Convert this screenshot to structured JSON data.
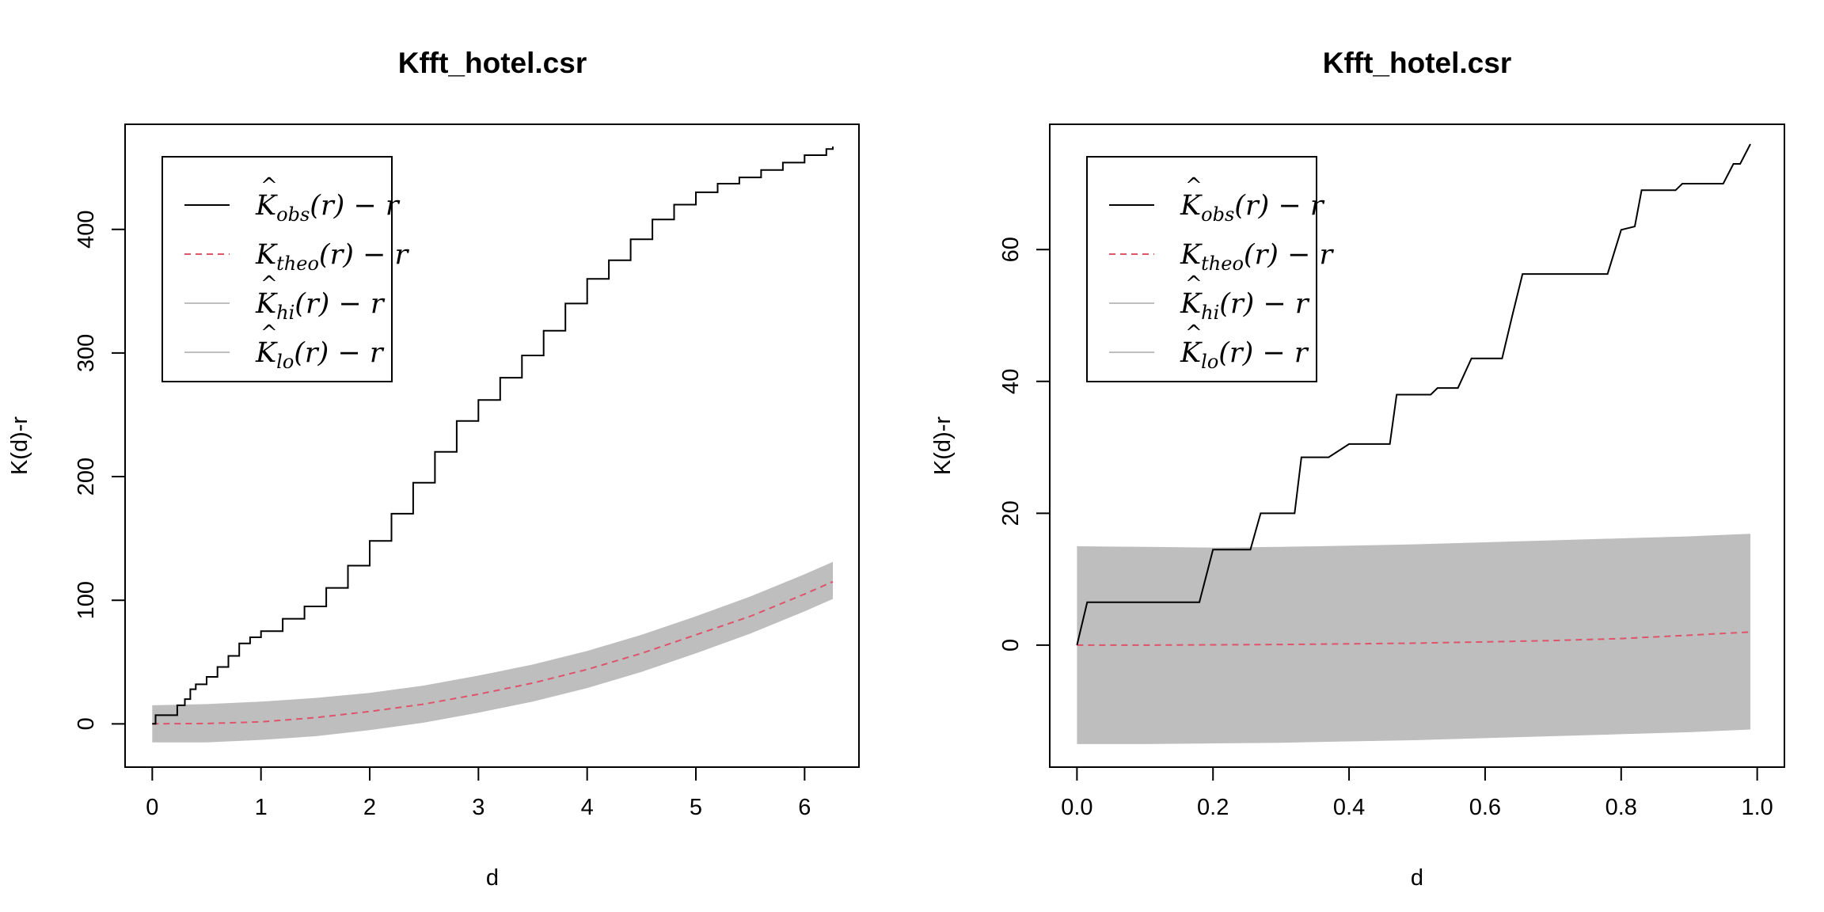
{
  "chart_data": [
    {
      "type": "line",
      "title": "Kfft_hotel.csr",
      "xlabel": "d",
      "ylabel": "K(d)-r",
      "xlim": [
        -0.25,
        6.5
      ],
      "ylim": [
        -35,
        485
      ],
      "xticks": [
        0,
        1,
        2,
        3,
        4,
        5,
        6
      ],
      "xtick_labels": [
        "0",
        "1",
        "2",
        "3",
        "4",
        "5",
        "6"
      ],
      "yticks": [
        0,
        100,
        200,
        300,
        400
      ],
      "ytick_labels": [
        "0",
        "100",
        "200",
        "300",
        "400"
      ],
      "legend_position": "top-left",
      "legend": [
        {
          "main": "K",
          "hat": "^",
          "sub": "obs",
          "rest": "(r) − r",
          "style": "solid",
          "color": "#000000"
        },
        {
          "main": "K",
          "hat": "",
          "sub": "theo",
          "rest": "(r) − r",
          "style": "dashed",
          "color": "#DF536B"
        },
        {
          "main": "K",
          "hat": "^",
          "sub": "hi",
          "rest": "(r) − r",
          "style": "solid",
          "color": "#BEBEBE"
        },
        {
          "main": "K",
          "hat": "^",
          "sub": "lo",
          "rest": "(r) − r",
          "style": "solid",
          "color": "#BEBEBE"
        }
      ],
      "series": [
        {
          "name": "obs",
          "color": "#000000",
          "style": "step",
          "x": [
            0,
            0.03,
            0.2,
            0.23,
            0.3,
            0.35,
            0.4,
            0.5,
            0.6,
            0.7,
            0.8,
            0.9,
            1.0,
            1.2,
            1.4,
            1.6,
            1.8,
            2.0,
            2.2,
            2.4,
            2.6,
            2.8,
            3.0,
            3.2,
            3.4,
            3.6,
            3.8,
            4.0,
            4.2,
            4.4,
            4.6,
            4.8,
            5.0,
            5.2,
            5.4,
            5.6,
            5.8,
            6.0,
            6.2,
            6.26
          ],
          "y": [
            0,
            7,
            7,
            15,
            20,
            28,
            32,
            38,
            46,
            55,
            65,
            70,
            75,
            85,
            95,
            110,
            128,
            148,
            170,
            195,
            220,
            245,
            262,
            280,
            298,
            318,
            340,
            360,
            375,
            392,
            408,
            420,
            430,
            437,
            442,
            448,
            454,
            460,
            465,
            467
          ]
        },
        {
          "name": "theo",
          "color": "#DF536B",
          "style": "dashed",
          "x": [
            0,
            0.5,
            1,
            1.5,
            2,
            2.5,
            3,
            3.5,
            4,
            4.5,
            5,
            5.5,
            6,
            6.26
          ],
          "y": [
            0,
            0.3,
            1.6,
            5,
            10,
            16,
            24,
            33,
            44,
            57,
            72,
            87,
            105,
            115
          ]
        },
        {
          "name": "hi",
          "color": "#BEBEBE",
          "style": "band-upper",
          "x": [
            0,
            0.5,
            1,
            1.5,
            2,
            2.5,
            3,
            3.5,
            4,
            4.5,
            5,
            5.5,
            6,
            6.26
          ],
          "y": [
            15,
            16,
            18,
            21,
            25,
            31,
            39,
            48,
            59,
            72,
            87,
            103,
            121,
            131
          ]
        },
        {
          "name": "lo",
          "color": "#BEBEBE",
          "style": "band-lower",
          "x": [
            0,
            0.5,
            1,
            1.5,
            2,
            2.5,
            3,
            3.5,
            4,
            4.5,
            5,
            5.5,
            6,
            6.26
          ],
          "y": [
            -15,
            -15,
            -13,
            -10,
            -5,
            1,
            9,
            18,
            29,
            42,
            57,
            73,
            91,
            101
          ]
        }
      ]
    },
    {
      "type": "line",
      "title": "Kfft_hotel.csr",
      "xlabel": "d",
      "ylabel": "K(d)-r",
      "xlim": [
        -0.04,
        1.04
      ],
      "ylim": [
        -18.5,
        79
      ],
      "xticks": [
        0,
        0.2,
        0.4,
        0.6,
        0.8,
        1.0
      ],
      "xtick_labels": [
        "0.0",
        "0.2",
        "0.4",
        "0.6",
        "0.8",
        "1.0"
      ],
      "yticks": [
        0,
        20,
        40,
        60
      ],
      "ytick_labels": [
        "0",
        "20",
        "40",
        "60"
      ],
      "legend_position": "top-left",
      "legend": [
        {
          "main": "K",
          "hat": "^",
          "sub": "obs",
          "rest": "(r) − r",
          "style": "solid",
          "color": "#000000"
        },
        {
          "main": "K",
          "hat": "",
          "sub": "theo",
          "rest": "(r) − r",
          "style": "dashed",
          "color": "#DF536B"
        },
        {
          "main": "K",
          "hat": "^",
          "sub": "hi",
          "rest": "(r) − r",
          "style": "solid",
          "color": "#BEBEBE"
        },
        {
          "main": "K",
          "hat": "^",
          "sub": "lo",
          "rest": "(r) − r",
          "style": "solid",
          "color": "#BEBEBE"
        }
      ],
      "series": [
        {
          "name": "obs",
          "color": "#000000",
          "style": "line",
          "x": [
            0,
            0.015,
            0.18,
            0.2,
            0.255,
            0.27,
            0.32,
            0.33,
            0.36,
            0.37,
            0.4,
            0.41,
            0.46,
            0.47,
            0.52,
            0.53,
            0.56,
            0.58,
            0.61,
            0.625,
            0.64,
            0.655,
            0.66,
            0.78,
            0.8,
            0.82,
            0.83,
            0.88,
            0.89,
            0.95,
            0.965,
            0.975,
            0.99
          ],
          "y": [
            0,
            6.5,
            6.5,
            14.5,
            14.5,
            20,
            20,
            28.5,
            28.5,
            28.5,
            30.5,
            30.5,
            30.5,
            38,
            38,
            39,
            39,
            43.5,
            43.5,
            43.5,
            50,
            56.3,
            56.3,
            56.3,
            63,
            63.5,
            69,
            69,
            70,
            70,
            73,
            73,
            76
          ]
        },
        {
          "name": "theo",
          "color": "#DF536B",
          "style": "dashed",
          "x": [
            0,
            0.1,
            0.2,
            0.3,
            0.4,
            0.5,
            0.6,
            0.7,
            0.8,
            0.9,
            0.99
          ],
          "y": [
            0,
            0,
            0.05,
            0.1,
            0.2,
            0.3,
            0.5,
            0.7,
            1.0,
            1.5,
            2.0
          ]
        },
        {
          "name": "hi",
          "color": "#BEBEBE",
          "style": "band-upper",
          "x": [
            0,
            0.1,
            0.2,
            0.3,
            0.4,
            0.5,
            0.6,
            0.7,
            0.8,
            0.9,
            0.99
          ],
          "y": [
            15,
            14.9,
            14.8,
            14.9,
            15.1,
            15.3,
            15.6,
            15.9,
            16.2,
            16.5,
            16.9
          ]
        },
        {
          "name": "lo",
          "color": "#BEBEBE",
          "style": "band-lower",
          "x": [
            0,
            0.1,
            0.2,
            0.3,
            0.4,
            0.5,
            0.6,
            0.7,
            0.8,
            0.9,
            0.99
          ],
          "y": [
            -15,
            -15,
            -14.9,
            -14.8,
            -14.6,
            -14.4,
            -14.1,
            -13.8,
            -13.5,
            -13.2,
            -12.8
          ]
        }
      ]
    }
  ]
}
